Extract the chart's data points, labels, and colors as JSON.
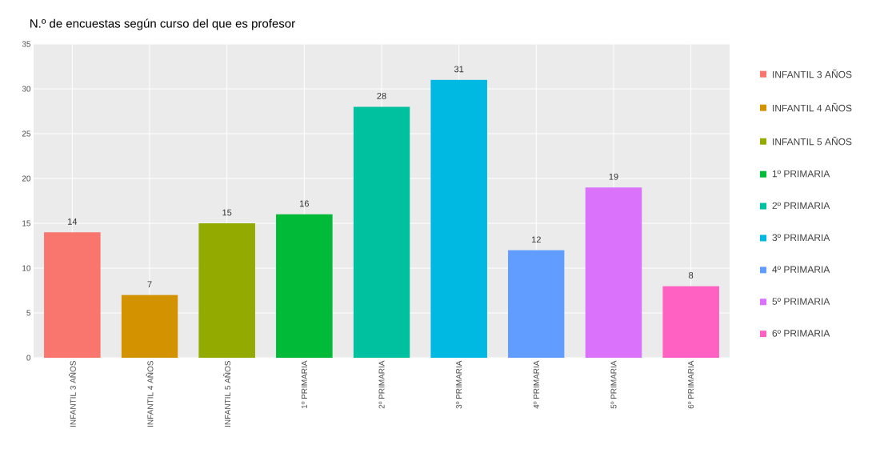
{
  "chart_data": {
    "type": "bar",
    "title": "N.º de  encuestas según curso del que es profesor",
    "categories": [
      "INFANTIL 3 AÑOS",
      "INFANTIL 4 AÑOS",
      "INFANTIL 5 AÑOS",
      "1º PRIMARIA",
      "2º PRIMARIA",
      "3º PRIMARIA",
      "4º PRIMARIA",
      "5º PRIMARIA",
      "6º PRIMARIA"
    ],
    "series": [
      {
        "name": "INFANTIL 3 AÑOS",
        "color": "#F8766D",
        "values": [
          14,
          null,
          null,
          null,
          null,
          null,
          null,
          null,
          null
        ]
      },
      {
        "name": "INFANTIL 4 AÑOS",
        "color": "#D39200",
        "values": [
          null,
          7,
          null,
          null,
          null,
          null,
          null,
          null,
          null
        ]
      },
      {
        "name": "INFANTIL 5 AÑOS",
        "color": "#93AA00",
        "values": [
          null,
          null,
          15,
          null,
          null,
          null,
          null,
          null,
          null
        ]
      },
      {
        "name": "1º PRIMARIA",
        "color": "#00BA38",
        "values": [
          null,
          null,
          null,
          16,
          null,
          null,
          null,
          null,
          null
        ]
      },
      {
        "name": "2º PRIMARIA",
        "color": "#00C19F",
        "values": [
          null,
          null,
          null,
          null,
          28,
          null,
          null,
          null,
          null
        ]
      },
      {
        "name": "3º PRIMARIA",
        "color": "#00B9E3",
        "values": [
          null,
          null,
          null,
          null,
          null,
          31,
          null,
          null,
          null
        ]
      },
      {
        "name": "4º PRIMARIA",
        "color": "#619CFF",
        "values": [
          null,
          null,
          null,
          null,
          null,
          null,
          12,
          null,
          null
        ]
      },
      {
        "name": "5º PRIMARIA",
        "color": "#DB72FB",
        "values": [
          null,
          null,
          null,
          null,
          null,
          null,
          null,
          19,
          null
        ]
      },
      {
        "name": "6º PRIMARIA",
        "color": "#FF61C3",
        "values": [
          null,
          null,
          null,
          null,
          null,
          null,
          null,
          null,
          8
        ]
      }
    ],
    "ylim": [
      0,
      35
    ],
    "yticks": [
      0,
      5,
      10,
      15,
      20,
      25,
      30,
      35
    ],
    "grid": true,
    "legend": "right",
    "data_labels": true
  }
}
